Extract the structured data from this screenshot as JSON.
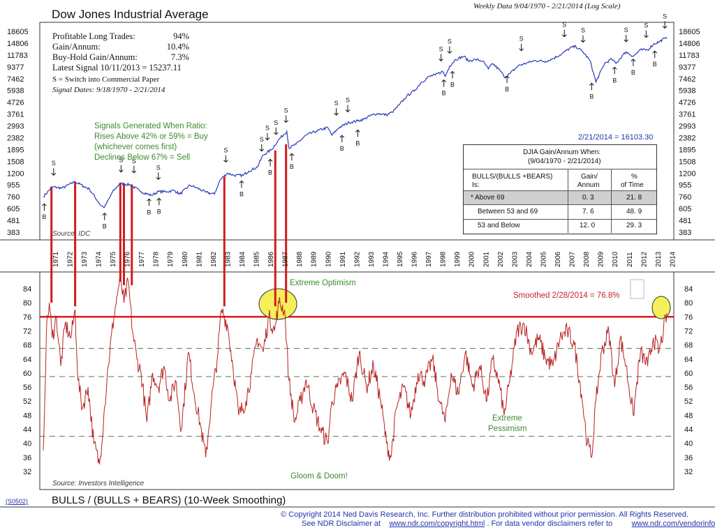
{
  "top_panel": {
    "title": "Dow Jones Industrial Average",
    "subtitle": "Weekly Data 9/04/1970 - 2/21/2014 (Log Scale)",
    "stats": {
      "profitable_label": "Profitable  Long  Trades:",
      "profitable_value": "94%",
      "gain_label": "Gain/Annum:",
      "gain_value": "10.4%",
      "buyhold_label": "Buy-Hold  Gain/Annum:",
      "buyhold_value": "7.3%",
      "latest_signal": "Latest Signal 10/11/2013 = 15237.11",
      "switch_note": "S =  Switch   into   Commercial        Paper",
      "signal_dates": "Signal Dates: 9/18/1970 - 2/21/2014"
    },
    "signals_text": [
      "Signals Generated When Ratio:",
      "Rises Above 42% or 59% = Buy",
      "(whichever comes first)",
      "Declines Below 67% = Sell"
    ],
    "latest_value": "2/21/2014 = 16103.30",
    "source": "Source: IDC",
    "table": {
      "title": "DJIA   Gain/Annum      When:",
      "period": "(9/04/1970 - 2/21/2014)",
      "col1": "BULLS/(BULLS        +BEARS)",
      "col1b": "Is:",
      "col2": "Gain/",
      "col2b": "Annum",
      "col3": "%",
      "col3b": "of Time",
      "rows": [
        {
          "label": "* Above   69",
          "gain": "0. 3",
          "time": "21. 8"
        },
        {
          "label": "Between    53  and  69",
          "gain": "7. 6",
          "time": "48. 9"
        },
        {
          "label": "53  and  Below",
          "gain": "12. 0",
          "time": "29. 3"
        }
      ]
    }
  },
  "bottom_panel": {
    "extreme_optimism": "Extreme Optimism",
    "smoothed": "Smoothed    2/28/2014   =   76.8%",
    "extreme_pessimism_1": "Extreme",
    "extreme_pessimism_2": "Pessimism",
    "gloom": "Gloom & Doom!",
    "source": "Source: Investors Intelligence",
    "title": "BULLS / (BULLS + BEARS) (10-Week Smoothing)",
    "code": "(S0502)"
  },
  "footer": {
    "line1": "©  Copyright 2014 Ned Davis Research, Inc.  Further distribution prohibited without prior permission.  All Rights Reserved.",
    "line2a": "See NDR Disclaimer at",
    "link1": "www.ndr.com/copyright.html",
    "line2b": ".  For data vendor disclaimers refer to",
    "link2": "www.ndr.com/vendorinfo/"
  },
  "colors": {
    "djia_line": "#2a3bb8",
    "sentiment_line": "#b82020",
    "signal_bar": "#d01c1c",
    "threshold_line": "#e01818",
    "dash_line": "#4a7a4a",
    "highlight": "#f5ef5a",
    "table_highlight": "#cfcfcf"
  },
  "chart_data": [
    {
      "type": "line",
      "title": "Dow Jones Industrial Average",
      "x_range": [
        1970.68,
        2014.14
      ],
      "x_ticks": [
        "1971",
        "1972",
        "1973",
        "1974",
        "1975",
        "1976",
        "1977",
        "1978",
        "1979",
        "1980",
        "1981",
        "1982",
        "1983",
        "1984",
        "1985",
        "1986",
        "1987",
        "1988",
        "1989",
        "1990",
        "1991",
        "1992",
        "1993",
        "1994",
        "1995",
        "1996",
        "1997",
        "1998",
        "1999",
        "2000",
        "2001",
        "2002",
        "2003",
        "2004",
        "2005",
        "2006",
        "2007",
        "2008",
        "2009",
        "2010",
        "2011",
        "2012",
        "2013",
        "2014"
      ],
      "y_scale": "log",
      "y_ticks": [
        383,
        481,
        605,
        760,
        955,
        1200,
        1508,
        1895,
        2382,
        2993,
        3761,
        4726,
        5938,
        7462,
        9377,
        11783,
        14806,
        18605
      ],
      "series": [
        {
          "x": [
            1970.68,
            1971.3,
            1972.0,
            1972.9,
            1973.5,
            1973.9,
            1974.7,
            1974.95,
            1975.5,
            1976.0,
            1976.7,
            1977.5,
            1978.2,
            1978.7,
            1979.3,
            1979.8,
            1980.2,
            1980.9,
            1981.4,
            1982.0,
            1982.6,
            1983.0,
            1983.5,
            1984.0,
            1984.6,
            1985.0,
            1985.6,
            1986.0,
            1986.6,
            1987.1,
            1987.65,
            1987.8,
            1988.3,
            1989.0,
            1989.7,
            1990.5,
            1990.8,
            1991.3,
            1992.0,
            1992.6,
            1993.0,
            1993.6,
            1994.0,
            1994.6,
            1995.0,
            1995.5,
            1996.0,
            1996.6,
            1997.0,
            1997.6,
            1998.0,
            1998.5,
            1998.7,
            1999.0,
            1999.4,
            2000.0,
            2000.3,
            2000.8,
            2001.3,
            2001.7,
            2002.0,
            2002.6,
            2002.8,
            2003.2,
            2003.8,
            2004.5,
            2005.0,
            2005.7,
            2006.2,
            2006.8,
            2007.4,
            2007.8,
            2008.3,
            2008.8,
            2009.2,
            2009.8,
            2010.3,
            2010.6,
            2011.0,
            2011.3,
            2011.8,
            2012.3,
            2012.8,
            2013.2,
            2013.6,
            2014.0,
            2014.14
          ],
          "y": [
            760,
            920,
            900,
            1020,
            930,
            880,
            640,
            620,
            830,
            980,
            960,
            840,
            780,
            840,
            840,
            860,
            800,
            950,
            900,
            830,
            800,
            1050,
            1200,
            1150,
            1150,
            1250,
            1350,
            1700,
            1900,
            2300,
            2700,
            1950,
            2100,
            2500,
            2700,
            2900,
            2500,
            2900,
            3200,
            3300,
            3400,
            3700,
            3800,
            3700,
            3900,
            4500,
            5300,
            6000,
            6900,
            7800,
            8000,
            8600,
            7800,
            9500,
            10800,
            11500,
            10500,
            10800,
            10500,
            9000,
            10000,
            8500,
            7700,
            8200,
            9600,
            10200,
            10600,
            10400,
            11000,
            12000,
            13500,
            13900,
            12500,
            10500,
            7000,
            10000,
            10900,
            10000,
            11500,
            12500,
            11500,
            13000,
            13000,
            14500,
            15200,
            16300,
            16103
          ]
        }
      ]
    },
    {
      "type": "line",
      "title": "BULLS / (BULLS + BEARS) (10-Week Smoothing)",
      "x_range": [
        1970.68,
        2014.14
      ],
      "y_ticks": [
        32,
        36,
        40,
        44,
        48,
        52,
        56,
        60,
        64,
        68,
        72,
        76,
        80,
        84
      ],
      "reference_lines": [
        76,
        67,
        59,
        42
      ],
      "series": [
        {
          "x": [
            1970.68,
            1970.9,
            1971.1,
            1971.3,
            1971.6,
            1971.9,
            1972.2,
            1972.6,
            1972.9,
            1973.1,
            1973.4,
            1973.8,
            1974.2,
            1974.6,
            1974.9,
            1975.2,
            1975.6,
            1975.9,
            1976.1,
            1976.3,
            1976.6,
            1976.9,
            1977.2,
            1977.5,
            1977.9,
            1978.3,
            1978.7,
            1979.1,
            1979.5,
            1979.9,
            1980.3,
            1980.8,
            1981.2,
            1981.6,
            1982.0,
            1982.4,
            1982.8,
            1983.1,
            1983.5,
            1983.9,
            1984.3,
            1984.8,
            1985.2,
            1985.6,
            1986.0,
            1986.4,
            1986.8,
            1987.1,
            1987.5,
            1987.8,
            1988.2,
            1988.6,
            1989.0,
            1989.5,
            1990.0,
            1990.5,
            1990.8,
            1991.2,
            1991.7,
            1992.2,
            1992.7,
            1993.2,
            1993.7,
            1994.2,
            1994.6,
            1994.9,
            1995.3,
            1995.8,
            1996.3,
            1996.8,
            1997.3,
            1997.8,
            1998.3,
            1998.7,
            1999.1,
            1999.6,
            2000.1,
            2000.6,
            2001.1,
            2001.6,
            2002.0,
            2002.5,
            2002.8,
            2003.2,
            2003.7,
            2004.2,
            2004.7,
            2005.2,
            2005.7,
            2006.2,
            2006.7,
            2007.2,
            2007.7,
            2008.2,
            2008.6,
            2008.9,
            2009.2,
            2009.6,
            2010.1,
            2010.5,
            2010.9,
            2011.3,
            2011.8,
            2012.3,
            2012.8,
            2013.2,
            2013.6,
            2013.9,
            2014.14
          ],
          "y": [
            38,
            72,
            80,
            70,
            76,
            62,
            74,
            70,
            78,
            58,
            50,
            56,
            40,
            34,
            48,
            62,
            76,
            84,
            86,
            80,
            86,
            72,
            64,
            60,
            46,
            60,
            56,
            62,
            52,
            58,
            44,
            66,
            54,
            46,
            36,
            52,
            64,
            78,
            74,
            62,
            48,
            52,
            60,
            70,
            66,
            76,
            72,
            80,
            78,
            58,
            46,
            52,
            58,
            50,
            44,
            40,
            52,
            56,
            60,
            52,
            66,
            56,
            62,
            52,
            40,
            36,
            50,
            56,
            48,
            60,
            58,
            64,
            52,
            46,
            60,
            54,
            66,
            56,
            62,
            52,
            64,
            56,
            48,
            58,
            72,
            74,
            66,
            70,
            64,
            62,
            70,
            72,
            68,
            54,
            40,
            36,
            52,
            66,
            72,
            56,
            70,
            62,
            48,
            66,
            62,
            70,
            66,
            72,
            77
          ]
        }
      ]
    }
  ]
}
